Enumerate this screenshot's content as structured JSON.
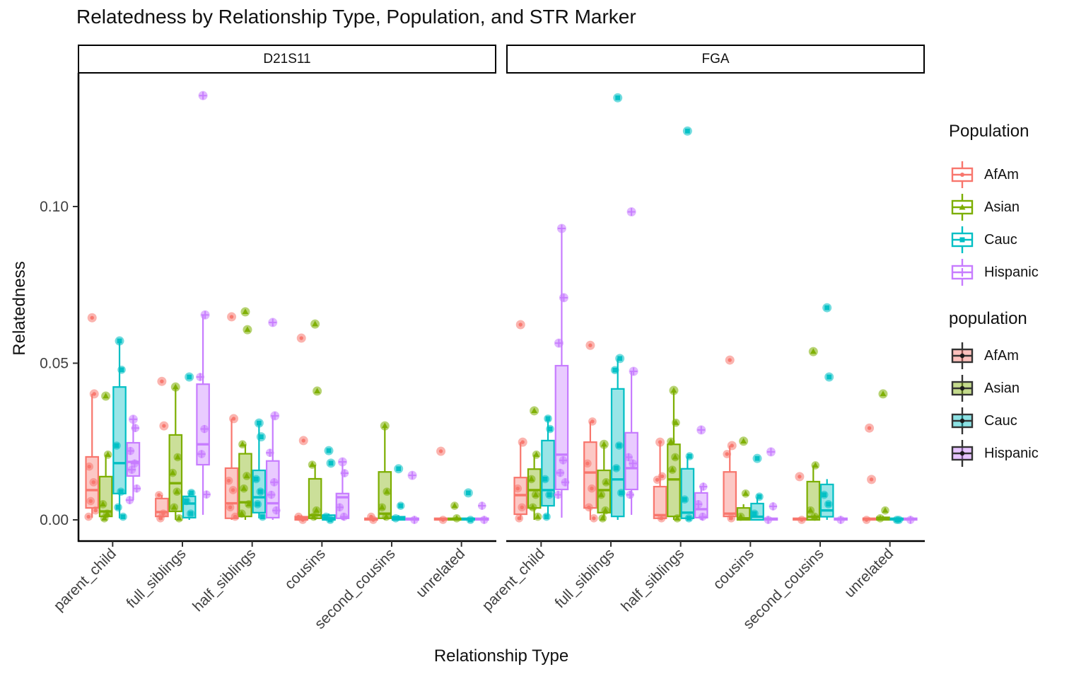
{
  "title": "Relatedness by Relationship Type, Population, and STR Marker",
  "axes": {
    "x_title": "Relationship Type",
    "y_title": "Relatedness",
    "y_ticks": [
      {
        "label": "0.00",
        "value": 0.0
      },
      {
        "label": "0.05",
        "value": 0.05
      },
      {
        "label": "0.10",
        "value": 0.1
      }
    ],
    "x_categories": [
      "parent_child",
      "full_siblings",
      "half_siblings",
      "cousins",
      "second_cousins",
      "unrelated"
    ]
  },
  "facet_labels": {
    "left": "D21S11",
    "right": "FGA"
  },
  "colors": {
    "AfAm": "#F8766D",
    "Asian": "#7CAE00",
    "Cauc": "#00BFC4",
    "Hispanic": "#C77CFF"
  },
  "shapes": {
    "AfAm": "circle",
    "Asian": "triangle",
    "Cauc": "square",
    "Hispanic": "plus"
  },
  "legends": [
    {
      "title": "Population",
      "style": "outline",
      "entries": [
        {
          "label": "AfAm"
        },
        {
          "label": "Asian"
        },
        {
          "label": "Cauc"
        },
        {
          "label": "Hispanic"
        }
      ]
    },
    {
      "title": "population",
      "style": "fill",
      "entries": [
        {
          "label": "AfAm"
        },
        {
          "label": "Asian"
        },
        {
          "label": "Cauc"
        },
        {
          "label": "Hispanic"
        }
      ]
    }
  ],
  "chart_data": {
    "type": "boxplot",
    "ylim": [
      0,
      0.142
    ],
    "legend_position": "right",
    "grid": false,
    "facets": [
      {
        "label": "D21S11",
        "boxes": [
          {
            "rel": "parent_child",
            "pop": "AfAm",
            "stats": [
              0.0007,
              0.0038,
              0.0095,
              0.0201,
              0.0402
            ],
            "points": [
              0.0645,
              0.0402,
              0.017,
              0.012,
              0.006,
              0.003,
              0.001
            ]
          },
          {
            "rel": "parent_child",
            "pop": "Asian",
            "stats": [
              0.0005,
              0.0011,
              0.0027,
              0.0138,
              0.0208
            ],
            "points": [
              0.0395,
              0.0208,
              0.005,
              0.002,
              0.0005
            ]
          },
          {
            "rel": "parent_child",
            "pop": "Cauc",
            "stats": [
              0.0005,
              0.0084,
              0.0181,
              0.0424,
              0.0571
            ],
            "points": [
              0.0571,
              0.0479,
              0.0237,
              0.009,
              0.004,
              0.001
            ]
          },
          {
            "rel": "parent_child",
            "pop": "Hispanic",
            "stats": [
              0.0063,
              0.014,
              0.0185,
              0.0246,
              0.0321
            ],
            "points": [
              0.0321,
              0.0293,
              0.022,
              0.018,
              0.016,
              0.01,
              0.0063
            ]
          },
          {
            "rel": "full_siblings",
            "pop": "AfAm",
            "stats": [
              0.0,
              0.0011,
              0.0025,
              0.0068,
              0.0079
            ],
            "points": [
              0.0442,
              0.03,
              0.0079,
              0.002,
              0.0005
            ]
          },
          {
            "rel": "full_siblings",
            "pop": "Asian",
            "stats": [
              0.0,
              0.0027,
              0.0117,
              0.0271,
              0.0424
            ],
            "points": [
              0.0424,
              0.02,
              0.015,
              0.009,
              0.004,
              0.0005
            ]
          },
          {
            "rel": "full_siblings",
            "pop": "Cauc",
            "stats": [
              0.0,
              0.0007,
              0.0052,
              0.0075,
              0.0086
            ],
            "points": [
              0.0456,
              0.0086,
              0.006,
              0.002
            ]
          },
          {
            "rel": "full_siblings",
            "pop": "Hispanic",
            "stats": [
              0.0016,
              0.0176,
              0.0241,
              0.0433,
              0.0654
            ],
            "points": [
              0.1354,
              0.0654,
              0.0456,
              0.029,
              0.021,
              0.0081
            ]
          },
          {
            "rel": "half_siblings",
            "pop": "AfAm",
            "stats": [
              0.0,
              0.0005,
              0.0053,
              0.0165,
              0.0323
            ],
            "points": [
              0.0648,
              0.0323,
              0.0125,
              0.0095,
              0.004,
              0.001
            ]
          },
          {
            "rel": "half_siblings",
            "pop": "Asian",
            "stats": [
              0.0,
              0.0011,
              0.0056,
              0.0211,
              0.0241
            ],
            "points": [
              0.0664,
              0.0607,
              0.0241,
              0.014,
              0.01,
              0.005,
              0.002
            ]
          },
          {
            "rel": "half_siblings",
            "pop": "Cauc",
            "stats": [
              0.0005,
              0.0023,
              0.0072,
              0.0158,
              0.0309
            ],
            "points": [
              0.0309,
              0.0265,
              0.013,
              0.009,
              0.005,
              0.001
            ]
          },
          {
            "rel": "half_siblings",
            "pop": "Hispanic",
            "stats": [
              0.0,
              0.0007,
              0.0053,
              0.0188,
              0.0332
            ],
            "points": [
              0.063,
              0.0332,
              0.0214,
              0.012,
              0.008,
              0.003
            ]
          },
          {
            "rel": "cousins",
            "pop": "AfAm",
            "stats": [
              0.0,
              0.0,
              0.0005,
              0.001,
              0.0015
            ],
            "points": [
              0.058,
              0.0253,
              0.001,
              0.0
            ]
          },
          {
            "rel": "cousins",
            "pop": "Asian",
            "stats": [
              0.0,
              0.0005,
              0.0015,
              0.0131,
              0.0176
            ],
            "points": [
              0.0625,
              0.0411,
              0.0176,
              0.003,
              0.001
            ]
          },
          {
            "rel": "cousins",
            "pop": "Cauc",
            "stats": [
              0.0,
              0.0,
              0.0005,
              0.0015,
              0.002
            ],
            "points": [
              0.0221,
              0.0181,
              0.001,
              0.0
            ]
          },
          {
            "rel": "cousins",
            "pop": "Hispanic",
            "stats": [
              0.0,
              0.0005,
              0.0072,
              0.0084,
              0.0185
            ],
            "points": [
              0.0185,
              0.0149,
              0.004,
              0.001
            ]
          },
          {
            "rel": "second_cousins",
            "pop": "AfAm",
            "stats": [
              0.0,
              0.0,
              0.0002,
              0.0005,
              0.0008
            ],
            "points": [
              0.001,
              0.0
            ]
          },
          {
            "rel": "second_cousins",
            "pop": "Asian",
            "stats": [
              0.0,
              0.0005,
              0.002,
              0.0153,
              0.03
            ],
            "points": [
              0.03,
              0.009,
              0.004,
              0.001
            ]
          },
          {
            "rel": "second_cousins",
            "pop": "Cauc",
            "stats": [
              0.0,
              0.0,
              0.0005,
              0.001,
              0.0015
            ],
            "points": [
              0.0163,
              0.0045,
              0.0005
            ]
          },
          {
            "rel": "second_cousins",
            "pop": "Hispanic",
            "stats": [
              0.0,
              0.0,
              0.0002,
              0.0005,
              0.0008
            ],
            "points": [
              0.0142,
              0.0
            ]
          },
          {
            "rel": "unrelated",
            "pop": "AfAm",
            "stats": [
              0.0,
              0.0,
              0.0002,
              0.0005,
              0.0008
            ],
            "points": [
              0.0219,
              0.0
            ]
          },
          {
            "rel": "unrelated",
            "pop": "Asian",
            "stats": [
              0.0,
              0.0,
              0.0002,
              0.0005,
              0.0008
            ],
            "points": [
              0.0045,
              0.0005
            ]
          },
          {
            "rel": "unrelated",
            "pop": "Cauc",
            "stats": [
              0.0,
              0.0,
              0.0002,
              0.0005,
              0.0008
            ],
            "points": [
              0.0086,
              0.0
            ]
          },
          {
            "rel": "unrelated",
            "pop": "Hispanic",
            "stats": [
              0.0,
              0.0,
              0.0002,
              0.0005,
              0.0008
            ],
            "points": [
              0.0045,
              0.0
            ]
          }
        ]
      },
      {
        "label": "FGA",
        "boxes": [
          {
            "rel": "parent_child",
            "pop": "AfAm",
            "stats": [
              0.0,
              0.0018,
              0.0079,
              0.0135,
              0.0248
            ],
            "points": [
              0.0623,
              0.0248,
              0.01,
              0.004,
              0.0005
            ]
          },
          {
            "rel": "parent_child",
            "pop": "Asian",
            "stats": [
              0.0,
              0.0038,
              0.0095,
              0.0162,
              0.0208
            ],
            "points": [
              0.0348,
              0.0208,
              0.013,
              0.008,
              0.004,
              0.001
            ]
          },
          {
            "rel": "parent_child",
            "pop": "Cauc",
            "stats": [
              0.001,
              0.0045,
              0.0095,
              0.0253,
              0.0323
            ],
            "points": [
              0.0323,
              0.029,
              0.013,
              0.008,
              0.001
            ]
          },
          {
            "rel": "parent_child",
            "pop": "Hispanic",
            "stats": [
              0.0007,
              0.0097,
              0.0208,
              0.0492,
              0.093
            ],
            "points": [
              0.093,
              0.0709,
              0.0564,
              0.019,
              0.015,
              0.012,
              0.008
            ]
          },
          {
            "rel": "full_siblings",
            "pop": "AfAm",
            "stats": [
              0.0,
              0.0038,
              0.0151,
              0.0248,
              0.0314
            ],
            "points": [
              0.0557,
              0.0314,
              0.018,
              0.01,
              0.004,
              0.0005
            ]
          },
          {
            "rel": "full_siblings",
            "pop": "Asian",
            "stats": [
              0.0,
              0.0023,
              0.0095,
              0.0158,
              0.0241
            ],
            "points": [
              0.0241,
              0.012,
              0.008,
              0.003,
              0.0005
            ]
          },
          {
            "rel": "full_siblings",
            "pop": "Cauc",
            "stats": [
              0.0,
              0.0011,
              0.0129,
              0.0418,
              0.0515
            ],
            "points": [
              0.1347,
              0.0515,
              0.0478,
              0.0237,
              0.0165,
              0.0086
            ]
          },
          {
            "rel": "full_siblings",
            "pop": "Hispanic",
            "stats": [
              0.0016,
              0.0097,
              0.0165,
              0.0278,
              0.0474
            ],
            "points": [
              0.0983,
              0.0474,
              0.02,
              0.018,
              0.008
            ]
          },
          {
            "rel": "half_siblings",
            "pop": "AfAm",
            "stats": [
              0.0,
              0.0005,
              0.0015,
              0.0106,
              0.0248
            ],
            "points": [
              0.0248,
              0.0139,
              0.0128,
              0.0005
            ]
          },
          {
            "rel": "half_siblings",
            "pop": "Asian",
            "stats": [
              0.0,
              0.0011,
              0.0129,
              0.0241,
              0.0413
            ],
            "points": [
              0.0413,
              0.031,
              0.025,
              0.02,
              0.016,
              0.0005
            ]
          },
          {
            "rel": "half_siblings",
            "pop": "Cauc",
            "stats": [
              0.0,
              0.0005,
              0.0023,
              0.0163,
              0.0203
            ],
            "points": [
              0.1241,
              0.0203,
              0.0065,
              0.0005
            ]
          },
          {
            "rel": "half_siblings",
            "pop": "Hispanic",
            "stats": [
              0.0,
              0.0007,
              0.0034,
              0.0086,
              0.0106
            ],
            "points": [
              0.0287,
              0.0106,
              0.005,
              0.001
            ]
          },
          {
            "rel": "cousins",
            "pop": "AfAm",
            "stats": [
              0.0,
              0.0011,
              0.002,
              0.0153,
              0.0237
            ],
            "points": [
              0.051,
              0.0237,
              0.021,
              0.0005
            ]
          },
          {
            "rel": "cousins",
            "pop": "Asian",
            "stats": [
              0.0,
              0.0,
              0.0005,
              0.0038,
              0.005
            ],
            "points": [
              0.0251,
              0.0084,
              0.001
            ]
          },
          {
            "rel": "cousins",
            "pop": "Cauc",
            "stats": [
              0.0,
              0.0,
              0.001,
              0.0052,
              0.0074
            ],
            "points": [
              0.0196,
              0.0074,
              0.002
            ]
          },
          {
            "rel": "cousins",
            "pop": "Hispanic",
            "stats": [
              0.0,
              0.0,
              0.0002,
              0.0005,
              0.0008
            ],
            "points": [
              0.0217,
              0.0043,
              0.0
            ]
          },
          {
            "rel": "second_cousins",
            "pop": "AfAm",
            "stats": [
              0.0,
              0.0,
              0.0002,
              0.0005,
              0.0008
            ],
            "points": [
              0.0138,
              0.0
            ]
          },
          {
            "rel": "second_cousins",
            "pop": "Asian",
            "stats": [
              0.0,
              0.0,
              0.001,
              0.0122,
              0.0174
            ],
            "points": [
              0.0537,
              0.0174,
              0.003,
              0.001
            ]
          },
          {
            "rel": "second_cousins",
            "pop": "Cauc",
            "stats": [
              0.0,
              0.001,
              0.003,
              0.0113,
              0.013
            ],
            "points": [
              0.0677,
              0.0456,
              0.008,
              0.005
            ]
          },
          {
            "rel": "second_cousins",
            "pop": "Hispanic",
            "stats": [
              0.0,
              0.0,
              0.0002,
              0.0005,
              0.0008
            ],
            "points": [
              0.0
            ]
          },
          {
            "rel": "unrelated",
            "pop": "AfAm",
            "stats": [
              0.0,
              0.0,
              0.0002,
              0.0005,
              0.0008
            ],
            "points": [
              0.0293,
              0.0129,
              0.0
            ]
          },
          {
            "rel": "unrelated",
            "pop": "Asian",
            "stats": [
              0.0,
              0.0,
              0.0002,
              0.0008,
              0.0012
            ],
            "points": [
              0.0402,
              0.003,
              0.0005
            ]
          },
          {
            "rel": "unrelated",
            "pop": "Cauc",
            "stats": [
              0.0,
              0.0,
              0.0002,
              0.0005,
              0.0008
            ],
            "points": [
              0.0,
              0.0
            ]
          },
          {
            "rel": "unrelated",
            "pop": "Hispanic",
            "stats": [
              0.0,
              0.0,
              0.0002,
              0.0005,
              0.0008
            ],
            "points": [
              0.0
            ]
          }
        ]
      }
    ]
  }
}
